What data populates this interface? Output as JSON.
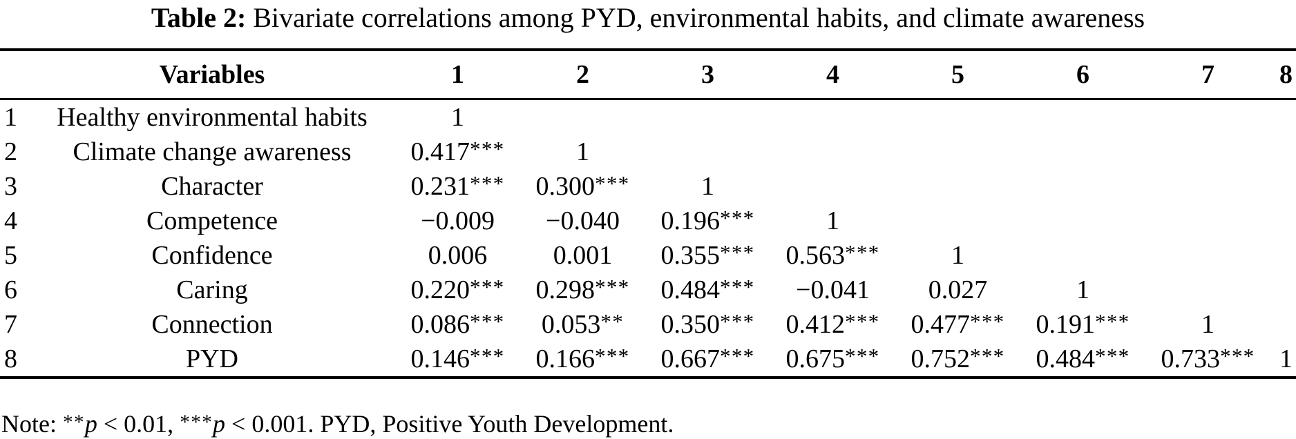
{
  "title": {
    "label": "Table 2:",
    "text": "Bivariate correlations among PYD, environmental habits, and climate awareness"
  },
  "table": {
    "row_header_label": "Variables",
    "columns": [
      "1",
      "2",
      "3",
      "4",
      "5",
      "6",
      "7",
      "8"
    ],
    "rows": [
      {
        "num": "1",
        "name": "Healthy environmental habits",
        "values": [
          "1",
          "",
          "",
          "",
          "",
          "",
          "",
          ""
        ]
      },
      {
        "num": "2",
        "name": "Climate change awareness",
        "values": [
          "0.417***",
          "1",
          "",
          "",
          "",
          "",
          "",
          ""
        ]
      },
      {
        "num": "3",
        "name": "Character",
        "values": [
          "0.231***",
          "0.300***",
          "1",
          "",
          "",
          "",
          "",
          ""
        ]
      },
      {
        "num": "4",
        "name": "Competence",
        "values": [
          "−0.009",
          "−0.040",
          "0.196***",
          "1",
          "",
          "",
          "",
          ""
        ]
      },
      {
        "num": "5",
        "name": "Confidence",
        "values": [
          "0.006",
          "0.001",
          "0.355***",
          "0.563***",
          "1",
          "",
          "",
          ""
        ]
      },
      {
        "num": "6",
        "name": "Caring",
        "values": [
          "0.220***",
          "0.298***",
          "0.484***",
          "−0.041",
          "0.027",
          "1",
          "",
          ""
        ]
      },
      {
        "num": "7",
        "name": "Connection",
        "values": [
          "0.086***",
          "0.053**",
          "0.350***",
          "0.412***",
          "0.477***",
          "0.191***",
          "1",
          ""
        ]
      },
      {
        "num": "8",
        "name": "PYD",
        "values": [
          "0.146***",
          "0.166***",
          "0.667***",
          "0.675***",
          "0.752***",
          "0.484***",
          "0.733***",
          "1"
        ]
      }
    ]
  },
  "note": {
    "parts": [
      {
        "style": "normal",
        "text": "Note: "
      },
      {
        "style": "sup",
        "text": "**"
      },
      {
        "style": "italic",
        "text": "p"
      },
      {
        "style": "normal",
        "text": " < 0.01, "
      },
      {
        "style": "sup",
        "text": "***"
      },
      {
        "style": "italic",
        "text": "p"
      },
      {
        "style": "normal",
        "text": " < 0.001. PYD, Positive Youth Development."
      }
    ]
  }
}
